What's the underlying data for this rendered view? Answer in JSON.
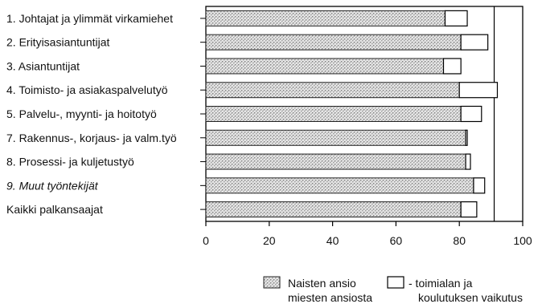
{
  "chart_data": {
    "type": "bar",
    "orientation": "horizontal",
    "stacked": true,
    "categories": [
      "1. Johtajat ja ylimmät virkamiehet",
      "2. Erityisasiantuntijat",
      "3. Asiantuntijat",
      "4. Toimisto- ja asiakaspalvelutyö",
      "5. Palvelu-, myynti- ja hoitotyö",
      "7. Rakennus-, korjaus- ja valm.työ",
      "8. Prosessi- ja kuljetustyö",
      "9. Muut työntekijät",
      "Kaikki palkansaajat"
    ],
    "series": [
      {
        "name": "Naisten ansio miesten ansiosta",
        "values": [
          75.5,
          80.5,
          75,
          80,
          80.5,
          82,
          82,
          84.5,
          80.5
        ]
      },
      {
        "name": "- toimialan ja koulutuksen vaikutus",
        "values": [
          7,
          8.5,
          5.5,
          12,
          6.5,
          0.5,
          1.5,
          3.5,
          5
        ]
      }
    ],
    "xlim": [
      0,
      100
    ],
    "xticks": [
      0,
      20,
      40,
      60,
      80,
      100
    ],
    "gridlines_x": [
      91
    ],
    "legend": {
      "placement": "bottom-right",
      "items": [
        {
          "lines": [
            "Naisten ansio",
            "miesten ansiosta"
          ]
        },
        {
          "lines": [
            "- toimialan ja",
            "koulutuksen vaikutus"
          ]
        }
      ]
    }
  }
}
